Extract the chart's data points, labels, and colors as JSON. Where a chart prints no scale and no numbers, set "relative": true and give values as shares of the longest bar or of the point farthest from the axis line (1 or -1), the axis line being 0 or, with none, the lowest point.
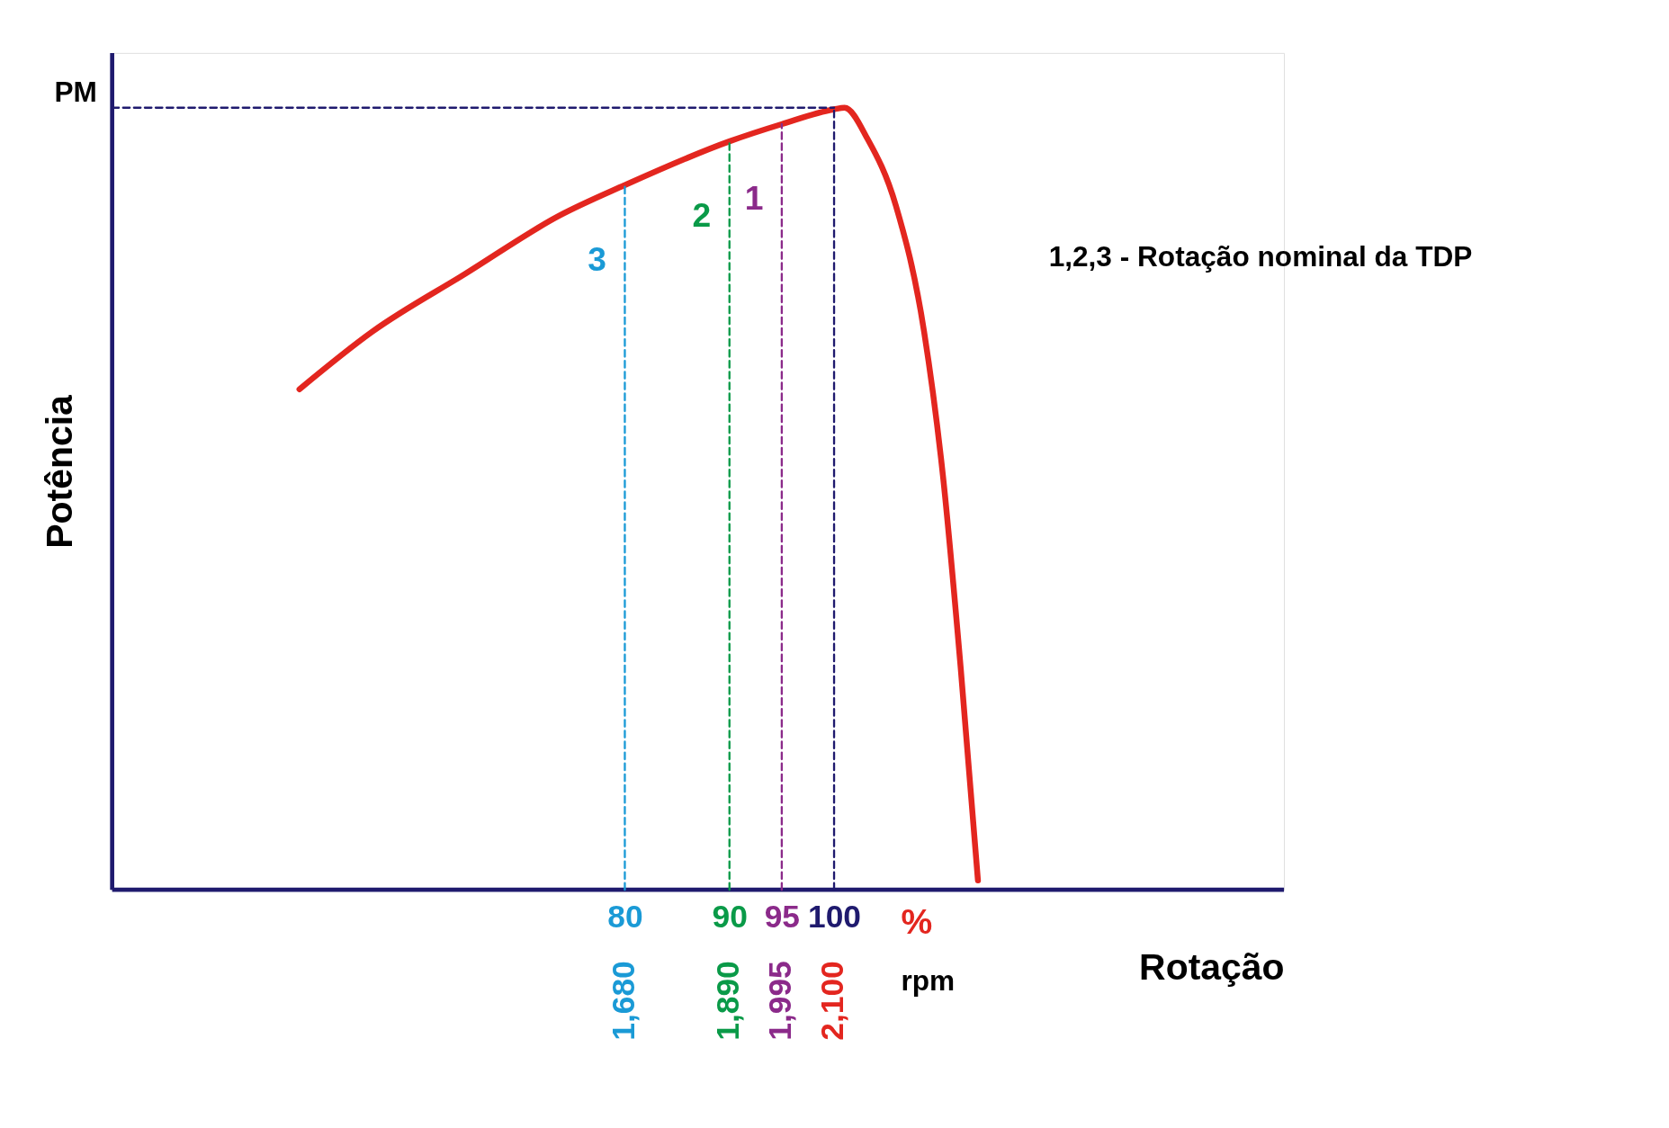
{
  "chart_data": {
    "type": "line",
    "relative": true,
    "xlabel": "Rotação",
    "ylabel": "Potência",
    "xlim": [
      31,
      143
    ],
    "xticks": [
      80,
      90,
      95,
      100
    ],
    "series": [
      {
        "color": "#e3261f",
        "x": [
          48.9,
          55.9,
          64.8,
          73.75,
          80,
          90,
          95,
          100,
          101,
          103.2,
          105.9,
          108.6,
          110.4,
          112.1,
          113.75
        ],
        "values": [
          0.64,
          0.714,
          0.788,
          0.862,
          0.901,
          0.957,
          0.979,
          0.998,
          1.0,
          0.96,
          0.875,
          0.714,
          0.53,
          0.284,
          0.012
        ]
      },
      {
        "name": "PM",
        "color": "#1f1a6e",
        "type": "line",
        "line_style": "dashed",
        "x": [
          31,
          100
        ],
        "values": [
          1.0,
          1.0
        ]
      },
      {
        "name": "3",
        "color": "#1a9ad6",
        "type": "line",
        "line_style": "dashed",
        "x": [
          80,
          80
        ],
        "values": [
          0,
          0.901
        ]
      },
      {
        "name": "2",
        "color": "#0a9a48",
        "type": "line",
        "line_style": "dashed",
        "x": [
          90,
          90
        ],
        "values": [
          0,
          0.957
        ]
      },
      {
        "name": "1",
        "color": "#8b2a8a",
        "type": "line",
        "line_style": "dashed",
        "x": [
          95,
          95
        ],
        "values": [
          0,
          0.979
        ]
      },
      {
        "color": "#1f1a6e",
        "type": "line",
        "line_style": "dashed",
        "x": [
          100,
          100
        ],
        "values": [
          0,
          1.0
        ]
      }
    ],
    "annotations": [
      "1,2,3 - Rotação nominal da TDP",
      "%",
      "rpm",
      "1,680",
      "1,890",
      "1,995",
      "2,100"
    ],
    "ref_lines": [
      {
        "axis": "y",
        "value": 0,
        "color": "#1f1a6e"
      },
      {
        "axis": "x",
        "value": 31,
        "color": "#1f1a6e"
      }
    ],
    "grid": false,
    "marker": "none"
  }
}
